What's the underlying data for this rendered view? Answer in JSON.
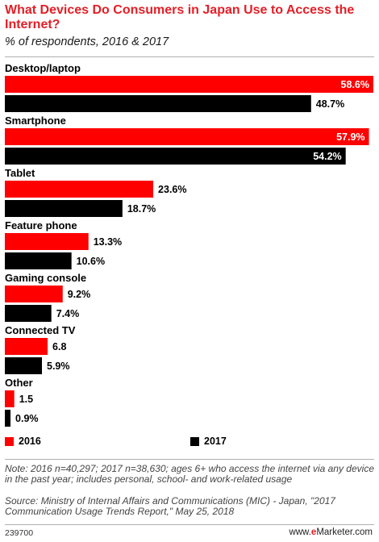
{
  "header": {
    "title": "What Devices Do Consumers in Japan Use to Access the Internet?",
    "subtitle": "% of respondents, 2016 & 2017"
  },
  "colors": {
    "accent": "#e41e26",
    "series_2016": "#ff0000",
    "series_2017": "#000000"
  },
  "chart_data": {
    "type": "bar",
    "orientation": "horizontal",
    "title": "What Devices Do Consumers in Japan Use to Access the Internet?",
    "subtitle": "% of respondents, 2016 & 2017",
    "categories": [
      "Desktop/laptop",
      "Smartphone",
      "Tablet",
      "Feature phone",
      "Gaming console",
      "Connected TV",
      "Other"
    ],
    "series": [
      {
        "name": "2016",
        "values": [
          58.6,
          57.9,
          23.6,
          13.3,
          9.2,
          6.8,
          1.5
        ],
        "labels": [
          "58.6%",
          "57.9%",
          "23.6%",
          "13.3%",
          "9.2%",
          "6.8",
          "1.5"
        ]
      },
      {
        "name": "2017",
        "values": [
          48.7,
          54.2,
          18.7,
          10.6,
          7.4,
          5.9,
          0.9
        ],
        "labels": [
          "48.7%",
          "54.2%",
          "18.7%",
          "10.6%",
          "7.4%",
          "5.9%",
          "0.9%"
        ]
      }
    ],
    "xlim": [
      0,
      58.6
    ],
    "grid": false,
    "legend_placement": "bottom"
  },
  "legend": {
    "item_2016": "2016",
    "item_2017": "2017"
  },
  "footer": {
    "note": "Note: 2016 n=40,297; 2017 n=38,630; ages 6+ who access the internet via any device in the past year; includes personal, school- and work-related usage",
    "source": "Source: Ministry of Internal Affairs and Communications (MIC) - Japan, \"2017 Communication Usage Trends Report,\" May 25, 2018",
    "chart_id": "239700",
    "brand_prefix": "www.",
    "brand_e": "e",
    "brand_rest": "Marketer.com"
  }
}
